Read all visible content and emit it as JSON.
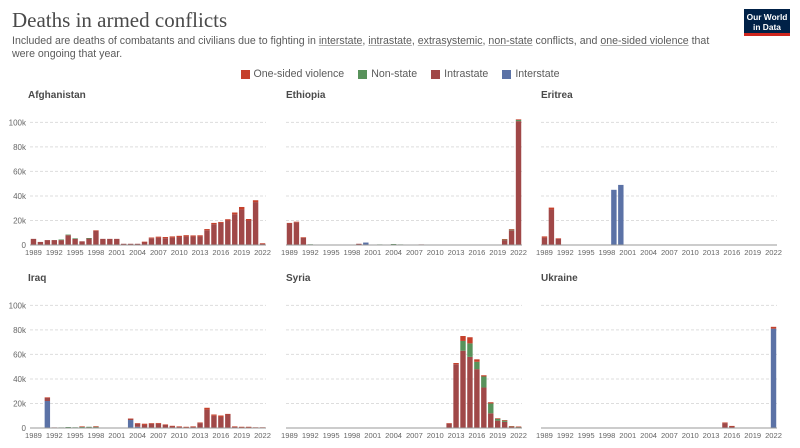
{
  "header": {
    "title": "Deaths in armed conflicts",
    "subtitle_parts": [
      {
        "text": "Included are deaths of combatants and civilians due to fighting in ",
        "link": false
      },
      {
        "text": "interstate",
        "link": true
      },
      {
        "text": ", ",
        "link": false
      },
      {
        "text": "intrastate",
        "link": true
      },
      {
        "text": ", ",
        "link": false
      },
      {
        "text": "extrasystemic",
        "link": true
      },
      {
        "text": ", ",
        "link": false
      },
      {
        "text": "non-state",
        "link": true
      },
      {
        "text": " conflicts, and ",
        "link": false
      },
      {
        "text": "one-sided violence",
        "link": true
      },
      {
        "text": " that were ongoing that year.",
        "link": false
      }
    ],
    "logo_line1": "Our World",
    "logo_line2": "in Data"
  },
  "legend": [
    {
      "label": "One-sided violence",
      "color": "#c5402b"
    },
    {
      "label": "Non-state",
      "color": "#58925b"
    },
    {
      "label": "Intrastate",
      "color": "#a04848"
    },
    {
      "label": "Interstate",
      "color": "#5b72a6"
    }
  ],
  "chart_data": {
    "type": "bar",
    "stacked": true,
    "x": [
      1989,
      1990,
      1991,
      1992,
      1993,
      1994,
      1995,
      1996,
      1997,
      1998,
      1999,
      2000,
      2001,
      2002,
      2003,
      2004,
      2005,
      2006,
      2007,
      2008,
      2009,
      2010,
      2011,
      2012,
      2013,
      2014,
      2015,
      2016,
      2017,
      2018,
      2019,
      2020,
      2021,
      2022
    ],
    "x_ticks": [
      1989,
      1992,
      1995,
      1998,
      2001,
      2004,
      2007,
      2010,
      2013,
      2016,
      2019,
      2022
    ],
    "y_ticks": [
      0,
      20000,
      40000,
      60000,
      80000,
      100000
    ],
    "y_tick_labels": [
      "0",
      "20k",
      "40k",
      "60k",
      "80k",
      "100k"
    ],
    "ylim": [
      0,
      106000
    ],
    "grid": true,
    "legend_position": "top-center",
    "series_names": [
      "Interstate",
      "Intrastate",
      "Non-state",
      "One-sided violence"
    ],
    "panels": [
      {
        "name": "Afghanistan",
        "series": {
          "Interstate": [
            0,
            0,
            0,
            0,
            0,
            0,
            0,
            0,
            0,
            0,
            0,
            0,
            0,
            0,
            0,
            0,
            0,
            0,
            0,
            0,
            0,
            0,
            0,
            0,
            0,
            0,
            0,
            0,
            0,
            0,
            0,
            0,
            0,
            0
          ],
          "Intrastate": [
            5000,
            2500,
            4000,
            4000,
            4000,
            8000,
            5000,
            3000,
            5500,
            11500,
            5000,
            5000,
            5000,
            1000,
            1000,
            1000,
            2500,
            5500,
            6000,
            5500,
            6000,
            6500,
            7000,
            7000,
            7000,
            12000,
            17000,
            18000,
            20000,
            25000,
            29000,
            20000,
            35000,
            1000
          ],
          "Non-state": [
            0,
            0,
            0,
            0,
            500,
            500,
            500,
            0,
            200,
            0,
            0,
            0,
            0,
            0,
            0,
            0,
            0,
            0,
            0,
            0,
            0,
            0,
            0,
            0,
            0,
            0,
            0,
            0,
            0,
            0,
            0,
            0,
            0,
            0
          ],
          "One-sided violence": [
            0,
            0,
            0,
            0,
            0,
            0,
            0,
            0,
            0,
            500,
            0,
            0,
            0,
            0,
            0,
            0,
            200,
            600,
            800,
            1000,
            1000,
            1000,
            1000,
            800,
            900,
            1000,
            1000,
            800,
            1000,
            1500,
            2000,
            1200,
            1500,
            500
          ]
        }
      },
      {
        "name": "Ethiopia",
        "series": {
          "Interstate": [
            0,
            0,
            0,
            0,
            0,
            0,
            0,
            0,
            0,
            0,
            0,
            2000,
            0,
            0,
            0,
            0,
            0,
            0,
            0,
            0,
            0,
            0,
            0,
            0,
            0,
            0,
            0,
            0,
            0,
            0,
            0,
            0,
            0,
            0
          ],
          "Intrastate": [
            17500,
            18500,
            6000,
            200,
            0,
            300,
            0,
            0,
            0,
            0,
            1000,
            0,
            0,
            0,
            0,
            500,
            200,
            200,
            0,
            500,
            0,
            0,
            0,
            0,
            0,
            0,
            0,
            0,
            0,
            0,
            0,
            4000,
            12000,
            101000
          ],
          "Non-state": [
            0,
            0,
            0,
            400,
            300,
            0,
            200,
            0,
            0,
            200,
            0,
            0,
            0,
            500,
            0,
            300,
            300,
            0,
            0,
            0,
            0,
            0,
            0,
            0,
            0,
            0,
            0,
            0,
            0,
            0,
            200,
            400,
            500,
            1000
          ],
          "One-sided violence": [
            500,
            500,
            300,
            0,
            0,
            0,
            0,
            0,
            0,
            0,
            0,
            0,
            0,
            0,
            0,
            0,
            0,
            0,
            0,
            0,
            0,
            0,
            0,
            0,
            0,
            0,
            0,
            0,
            0,
            0,
            0,
            500,
            500,
            500
          ]
        }
      },
      {
        "name": "Eritrea",
        "series": {
          "Interstate": [
            0,
            0,
            0,
            0,
            0,
            0,
            0,
            0,
            0,
            0,
            45000,
            49000,
            0,
            0,
            0,
            0,
            0,
            0,
            0,
            0,
            0,
            0,
            0,
            0,
            0,
            0,
            0,
            0,
            0,
            0,
            0,
            0,
            0,
            0
          ],
          "Intrastate": [
            6000,
            29000,
            5000,
            0,
            0,
            0,
            0,
            0,
            0,
            0,
            0,
            0,
            0,
            0,
            0,
            0,
            0,
            0,
            0,
            0,
            0,
            0,
            0,
            0,
            0,
            0,
            0,
            0,
            0,
            0,
            0,
            0,
            0,
            0
          ],
          "Non-state": [
            0,
            0,
            0,
            0,
            0,
            0,
            0,
            0,
            0,
            0,
            0,
            0,
            0,
            0,
            0,
            0,
            0,
            0,
            0,
            0,
            0,
            0,
            0,
            0,
            0,
            0,
            0,
            0,
            0,
            0,
            0,
            0,
            0,
            0
          ],
          "One-sided violence": [
            1000,
            1500,
            500,
            0,
            0,
            0,
            0,
            0,
            0,
            0,
            0,
            0,
            0,
            0,
            0,
            0,
            0,
            0,
            0,
            0,
            0,
            0,
            0,
            0,
            0,
            0,
            0,
            0,
            0,
            0,
            0,
            0,
            0,
            0
          ]
        }
      },
      {
        "name": "Iraq",
        "series": {
          "Interstate": [
            0,
            0,
            22000,
            0,
            0,
            0,
            0,
            0,
            0,
            0,
            0,
            0,
            0,
            0,
            6500,
            1000,
            0,
            0,
            0,
            0,
            0,
            0,
            0,
            0,
            0,
            0,
            0,
            0,
            0,
            0,
            0,
            0,
            0,
            0
          ],
          "Intrastate": [
            0,
            0,
            2500,
            500,
            300,
            300,
            300,
            300,
            700,
            700,
            200,
            200,
            200,
            200,
            1000,
            2500,
            2500,
            3500,
            3500,
            2500,
            1500,
            1000,
            800,
            1000,
            4000,
            15000,
            10000,
            9000,
            11000,
            1000,
            800,
            800,
            400,
            400
          ],
          "Non-state": [
            0,
            0,
            0,
            0,
            200,
            500,
            300,
            800,
            300,
            300,
            0,
            0,
            0,
            0,
            0,
            0,
            0,
            0,
            0,
            0,
            0,
            0,
            0,
            0,
            0,
            0,
            0,
            0,
            0,
            0,
            0,
            0,
            0,
            0
          ],
          "One-sided violence": [
            0,
            0,
            500,
            0,
            0,
            0,
            0,
            200,
            0,
            500,
            0,
            0,
            0,
            0,
            200,
            500,
            1000,
            500,
            600,
            400,
            300,
            300,
            200,
            300,
            500,
            1500,
            1000,
            1200,
            500,
            300,
            200,
            200,
            200,
            200
          ]
        }
      },
      {
        "name": "Syria",
        "series": {
          "Interstate": [
            0,
            0,
            0,
            0,
            0,
            0,
            0,
            0,
            0,
            0,
            0,
            0,
            0,
            0,
            0,
            0,
            0,
            0,
            0,
            0,
            0,
            0,
            0,
            0,
            0,
            0,
            0,
            0,
            0,
            0,
            0,
            0,
            0,
            0
          ],
          "Intrastate": [
            0,
            0,
            0,
            0,
            0,
            0,
            0,
            0,
            0,
            0,
            0,
            0,
            0,
            0,
            0,
            0,
            0,
            0,
            0,
            0,
            0,
            0,
            0,
            3500,
            52000,
            63000,
            58000,
            48000,
            33000,
            12000,
            6000,
            5000,
            1000,
            800
          ],
          "Non-state": [
            0,
            0,
            0,
            0,
            0,
            0,
            0,
            0,
            0,
            0,
            0,
            0,
            0,
            0,
            0,
            0,
            0,
            0,
            0,
            0,
            0,
            0,
            0,
            0,
            0,
            8000,
            11000,
            6000,
            9000,
            8000,
            1500,
            1000,
            300,
            200
          ],
          "One-sided violence": [
            0,
            0,
            0,
            0,
            0,
            0,
            0,
            0,
            0,
            0,
            0,
            0,
            0,
            0,
            0,
            0,
            0,
            0,
            0,
            0,
            0,
            0,
            0,
            500,
            1000,
            4000,
            5000,
            2000,
            1000,
            1000,
            500,
            500,
            200,
            200
          ]
        }
      },
      {
        "name": "Ukraine",
        "series": {
          "Interstate": [
            0,
            0,
            0,
            0,
            0,
            0,
            0,
            0,
            0,
            0,
            0,
            0,
            0,
            0,
            0,
            0,
            0,
            0,
            0,
            0,
            0,
            0,
            0,
            0,
            0,
            0,
            0,
            0,
            0,
            0,
            0,
            0,
            0,
            81000
          ],
          "Intrastate": [
            0,
            0,
            0,
            0,
            0,
            0,
            0,
            0,
            0,
            0,
            0,
            0,
            0,
            0,
            0,
            0,
            0,
            0,
            0,
            0,
            0,
            0,
            0,
            0,
            0,
            0,
            4000,
            1500,
            300,
            300,
            200,
            100,
            100,
            0
          ],
          "Non-state": [
            0,
            0,
            0,
            0,
            0,
            0,
            0,
            0,
            0,
            0,
            0,
            0,
            0,
            0,
            0,
            0,
            0,
            0,
            0,
            0,
            0,
            0,
            0,
            0,
            0,
            0,
            0,
            0,
            0,
            0,
            0,
            0,
            0,
            0
          ],
          "One-sided violence": [
            0,
            0,
            0,
            0,
            0,
            0,
            0,
            0,
            0,
            0,
            0,
            0,
            0,
            0,
            0,
            0,
            0,
            0,
            0,
            0,
            0,
            0,
            0,
            0,
            0,
            0,
            500,
            200,
            0,
            0,
            0,
            0,
            0,
            1500
          ]
        }
      }
    ]
  }
}
